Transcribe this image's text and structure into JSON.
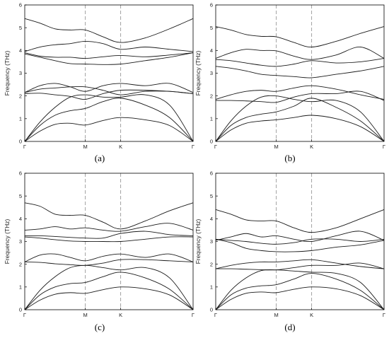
{
  "chart_data": [
    {
      "type": "line",
      "panel_label": "(a)",
      "ylabel": "Frequency (THz)",
      "ylim": [
        0,
        6
      ],
      "yticks": [
        "0",
        "1",
        "2",
        "3",
        "4",
        "5",
        "6"
      ],
      "xlim": [
        0,
        1
      ],
      "xticks": [
        {
          "label": "Γ",
          "x": 0
        },
        {
          "label": "M",
          "x": 0.36
        },
        {
          "label": "K",
          "x": 0.57
        },
        {
          "label": "Γ",
          "x": 1
        }
      ],
      "high_symmetry_guides": [
        0.36,
        0.57
      ],
      "x": [
        0,
        0.09,
        0.18,
        0.27,
        0.36,
        0.465,
        0.57,
        0.715,
        0.86,
        1
      ],
      "series": [
        {
          "values": [
            0,
            0.45,
            0.75,
            0.8,
            0.72,
            0.92,
            1.05,
            0.95,
            0.7,
            0
          ]
        },
        {
          "values": [
            0,
            0.7,
            1.15,
            1.35,
            1.45,
            1.75,
            1.9,
            1.6,
            1.05,
            0
          ]
        },
        {
          "values": [
            0,
            0.85,
            1.5,
            1.95,
            2.05,
            1.95,
            1.95,
            2.05,
            1.6,
            0
          ]
        },
        {
          "values": [
            2.1,
            2.12,
            2.05,
            1.98,
            1.85,
            2.1,
            2.25,
            2.25,
            2.2,
            2.1
          ]
        },
        {
          "values": [
            2.15,
            2.45,
            2.55,
            2.4,
            2.2,
            2.45,
            2.55,
            2.45,
            2.55,
            2.15
          ]
        },
        {
          "values": [
            2.15,
            2.3,
            2.35,
            2.4,
            2.4,
            2.25,
            2.05,
            2.2,
            2.2,
            2.1
          ]
        },
        {
          "values": [
            3.85,
            3.7,
            3.55,
            3.42,
            3.4,
            3.38,
            3.4,
            3.55,
            3.7,
            3.9
          ]
        },
        {
          "values": [
            3.9,
            3.75,
            3.7,
            3.7,
            3.65,
            3.72,
            3.78,
            3.72,
            3.8,
            3.9
          ]
        },
        {
          "values": [
            3.95,
            4.15,
            4.25,
            4.3,
            4.4,
            4.3,
            4.05,
            4.15,
            4.05,
            3.95
          ]
        },
        {
          "values": [
            5.4,
            5.2,
            4.95,
            4.9,
            4.9,
            4.6,
            4.35,
            4.55,
            4.95,
            5.4
          ]
        }
      ]
    },
    {
      "type": "line",
      "panel_label": "(b)",
      "ylabel": "Frequency (THz)",
      "ylim": [
        0,
        6
      ],
      "yticks": [
        "0",
        "1",
        "2",
        "3",
        "4",
        "5",
        "6"
      ],
      "xlim": [
        0,
        1
      ],
      "xticks": [
        {
          "label": "Γ",
          "x": 0
        },
        {
          "label": "M",
          "x": 0.36
        },
        {
          "label": "K",
          "x": 0.57
        },
        {
          "label": "Γ",
          "x": 1
        }
      ],
      "high_symmetry_guides": [
        0.36,
        0.57
      ],
      "x": [
        0,
        0.09,
        0.18,
        0.27,
        0.36,
        0.465,
        0.57,
        0.715,
        0.86,
        1
      ],
      "series": [
        {
          "values": [
            0,
            0.5,
            0.8,
            0.9,
            0.95,
            1.05,
            1.15,
            1.0,
            0.65,
            0
          ]
        },
        {
          "values": [
            0,
            0.7,
            1.05,
            1.2,
            1.3,
            1.55,
            1.9,
            1.5,
            0.9,
            0
          ]
        },
        {
          "values": [
            0,
            0.9,
            1.55,
            1.95,
            2.0,
            1.85,
            1.75,
            1.8,
            1.3,
            0
          ]
        },
        {
          "values": [
            1.8,
            1.8,
            1.78,
            1.75,
            1.72,
            1.95,
            2.1,
            2.1,
            2.2,
            1.8
          ]
        },
        {
          "values": [
            1.85,
            2.05,
            2.2,
            2.25,
            2.2,
            2.35,
            2.45,
            2.3,
            2.05,
            1.85
          ]
        },
        {
          "values": [
            3.3,
            3.22,
            3.1,
            2.95,
            2.9,
            2.85,
            2.8,
            2.95,
            3.1,
            3.3
          ]
        },
        {
          "values": [
            3.6,
            3.55,
            3.45,
            3.35,
            3.3,
            3.4,
            3.55,
            3.45,
            3.5,
            3.65
          ]
        },
        {
          "values": [
            3.65,
            3.9,
            4.05,
            4.0,
            3.98,
            3.75,
            3.6,
            3.8,
            4.15,
            3.65
          ]
        },
        {
          "values": [
            5.05,
            4.9,
            4.7,
            4.62,
            4.6,
            4.35,
            4.15,
            4.4,
            4.75,
            5.05
          ]
        }
      ]
    },
    {
      "type": "line",
      "panel_label": "(c)",
      "ylabel": "Frequency (THz)",
      "ylim": [
        0,
        6
      ],
      "yticks": [
        "0",
        "1",
        "2",
        "3",
        "4",
        "5",
        "6"
      ],
      "xlim": [
        0,
        1
      ],
      "xticks": [
        {
          "label": "Γ",
          "x": 0
        },
        {
          "label": "M",
          "x": 0.36
        },
        {
          "label": "K",
          "x": 0.57
        },
        {
          "label": "Γ",
          "x": 1
        }
      ],
      "high_symmetry_guides": [
        0.36,
        0.57
      ],
      "x": [
        0,
        0.09,
        0.18,
        0.27,
        0.36,
        0.465,
        0.57,
        0.715,
        0.86,
        1
      ],
      "series": [
        {
          "values": [
            0,
            0.42,
            0.68,
            0.75,
            0.72,
            0.88,
            1.0,
            0.92,
            0.65,
            0
          ]
        },
        {
          "values": [
            0,
            0.65,
            1.0,
            1.15,
            1.2,
            1.45,
            1.65,
            1.4,
            0.9,
            0
          ]
        },
        {
          "values": [
            0,
            0.85,
            1.45,
            1.85,
            1.95,
            1.85,
            1.75,
            1.85,
            1.4,
            0
          ]
        },
        {
          "values": [
            2.1,
            2.08,
            2.02,
            1.98,
            1.95,
            2.05,
            2.2,
            2.2,
            2.15,
            2.1
          ]
        },
        {
          "values": [
            2.1,
            2.4,
            2.45,
            2.3,
            2.15,
            2.35,
            2.45,
            2.3,
            2.45,
            2.1
          ]
        },
        {
          "values": [
            3.2,
            3.15,
            3.08,
            3.02,
            3.0,
            3.0,
            3.0,
            3.1,
            3.2,
            3.2
          ]
        },
        {
          "values": [
            3.25,
            3.25,
            3.22,
            3.18,
            3.15,
            3.15,
            3.35,
            3.45,
            3.3,
            3.25
          ]
        },
        {
          "values": [
            3.5,
            3.55,
            3.65,
            3.55,
            3.6,
            3.5,
            3.45,
            3.65,
            3.8,
            3.5
          ]
        },
        {
          "values": [
            4.7,
            4.55,
            4.2,
            4.15,
            4.15,
            3.85,
            3.55,
            3.9,
            4.35,
            4.7
          ]
        }
      ]
    },
    {
      "type": "line",
      "panel_label": "(d)",
      "ylabel": "Frequency (THz)",
      "ylim": [
        0,
        6
      ],
      "yticks": [
        "0",
        "1",
        "2",
        "3",
        "4",
        "5",
        "6"
      ],
      "xlim": [
        0,
        1
      ],
      "xticks": [
        {
          "label": "Γ",
          "x": 0
        },
        {
          "label": "M",
          "x": 0.36
        },
        {
          "label": "K",
          "x": 0.57
        },
        {
          "label": "Γ",
          "x": 1
        }
      ],
      "high_symmetry_guides": [
        0.36,
        0.57
      ],
      "x": [
        0,
        0.09,
        0.18,
        0.27,
        0.36,
        0.465,
        0.57,
        0.715,
        0.86,
        1
      ],
      "series": [
        {
          "values": [
            0,
            0.45,
            0.72,
            0.78,
            0.75,
            0.9,
            1.0,
            0.92,
            0.62,
            0
          ]
        },
        {
          "values": [
            0,
            0.65,
            0.95,
            1.05,
            1.1,
            1.35,
            1.6,
            1.35,
            0.85,
            0
          ]
        },
        {
          "values": [
            0,
            0.85,
            1.4,
            1.72,
            1.75,
            1.7,
            1.65,
            1.6,
            1.2,
            0
          ]
        },
        {
          "values": [
            1.8,
            1.8,
            1.78,
            1.76,
            1.75,
            1.85,
            1.95,
            1.95,
            2.05,
            1.8
          ]
        },
        {
          "values": [
            1.8,
            1.95,
            2.05,
            2.1,
            2.1,
            2.15,
            2.2,
            2.05,
            1.9,
            1.8
          ]
        },
        {
          "values": [
            3.1,
            2.95,
            2.7,
            2.6,
            2.55,
            2.55,
            2.6,
            2.75,
            2.85,
            3.05
          ]
        },
        {
          "values": [
            3.1,
            3.05,
            3.0,
            2.92,
            2.88,
            2.95,
            3.1,
            3.1,
            3.0,
            3.1
          ]
        },
        {
          "values": [
            3.05,
            3.2,
            3.35,
            3.2,
            3.25,
            3.1,
            3.0,
            3.25,
            3.45,
            3.05
          ]
        },
        {
          "values": [
            4.4,
            4.2,
            3.95,
            3.9,
            3.9,
            3.6,
            3.4,
            3.6,
            4.0,
            4.4
          ]
        }
      ]
    }
  ]
}
